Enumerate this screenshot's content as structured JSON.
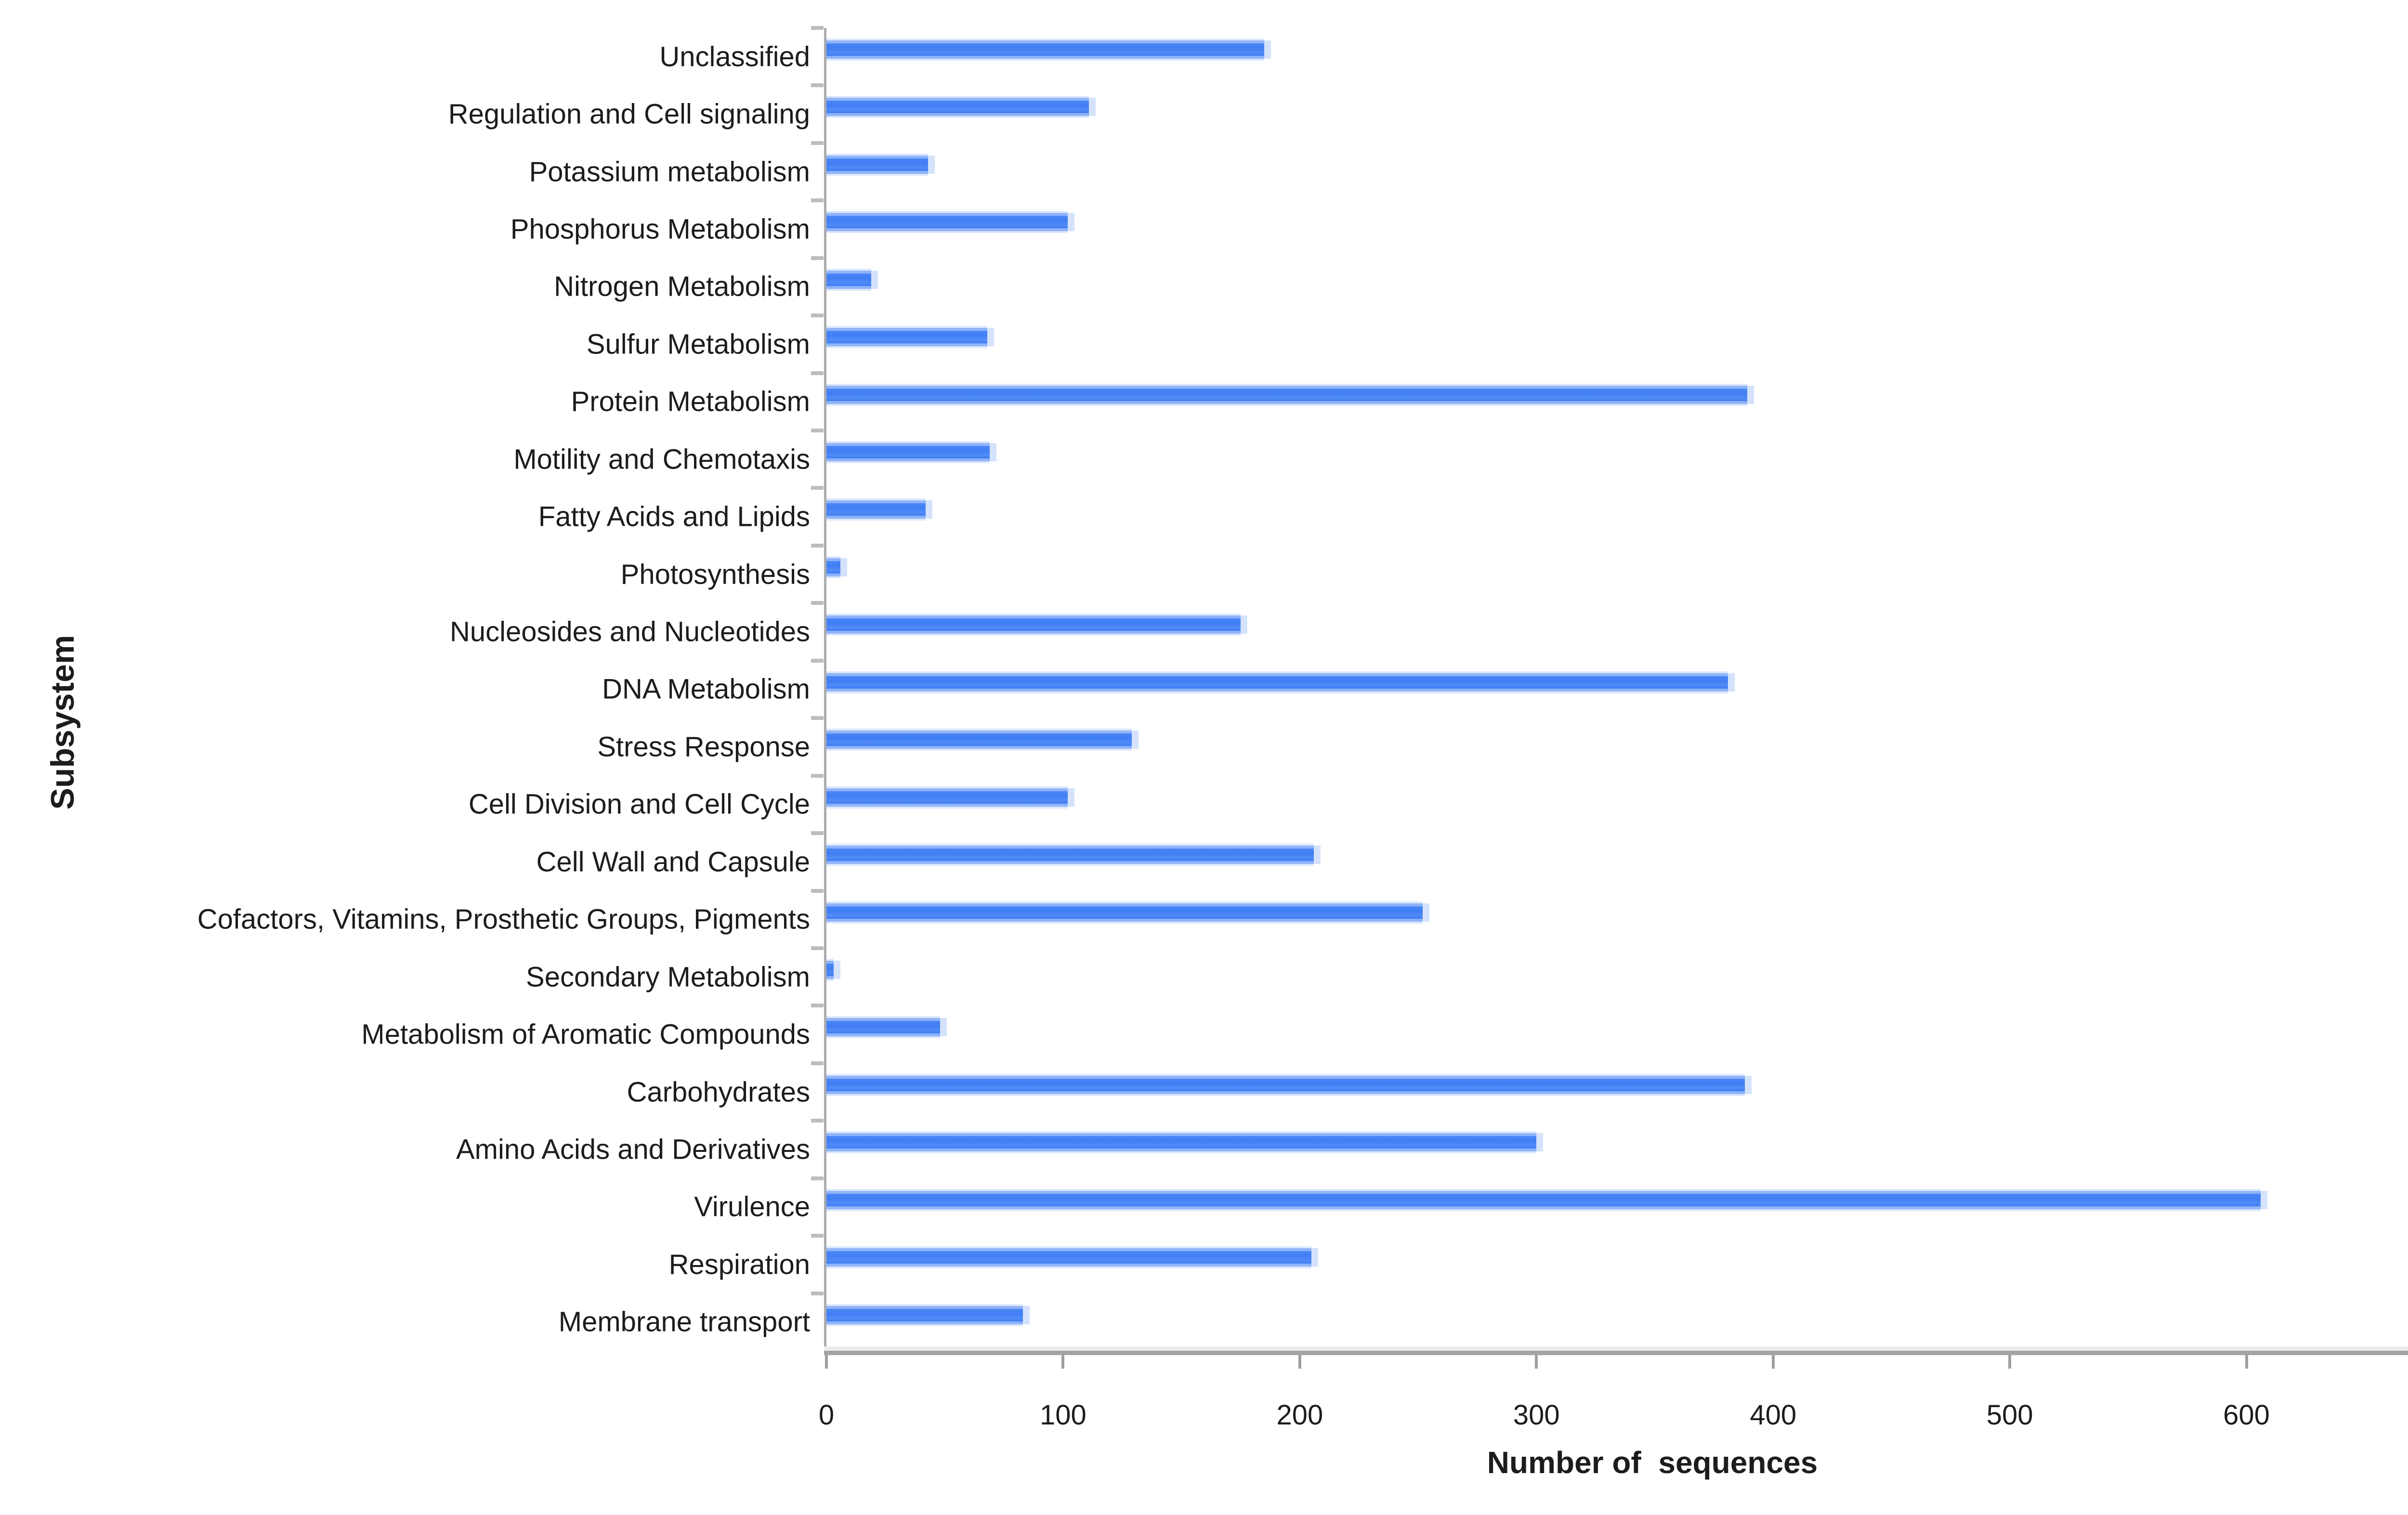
{
  "chart_data": {
    "type": "bar",
    "orientation": "horizontal",
    "title": "",
    "xlabel": "Number of  sequences",
    "ylabel": "Subsystem",
    "xlim": [
      0,
      700
    ],
    "xticks": [
      0,
      100,
      200,
      300,
      400,
      500,
      600,
      700
    ],
    "grid": false,
    "legend": "none",
    "bar_color": "#3f7ef4",
    "bar_cap_color": "#cdddfc",
    "axis_color": "#a3a3a3",
    "axis_light": "#ababab",
    "axis_halo": "#ebebeb",
    "xtick_color": "#9e9e9e",
    "ytick_color": "#bdbdbd",
    "text_color": "#1c1c1c",
    "categories": [
      "Unclassified",
      "Regulation and Cell signaling",
      "Potassium metabolism",
      "Phosphorus Metabolism",
      "Nitrogen Metabolism",
      "Sulfur Metabolism",
      "Protein Metabolism",
      "Motility and Chemotaxis",
      "Fatty Acids and Lipids",
      "Photosynthesis",
      "Nucleosides and Nucleotides",
      "DNA Metabolism",
      "Stress Response",
      "Cell Division and Cell Cycle",
      "Cell Wall and Capsule",
      "Cofactors, Vitamins, Prosthetic Groups, Pigments",
      "Secondary Metabolism",
      "Metabolism of Aromatic Compounds",
      "Carbohydrates",
      "Amino Acids and Derivatives",
      "Virulence",
      "Respiration",
      "Membrane transport"
    ],
    "values": [
      185,
      111,
      43,
      102,
      19,
      68,
      389,
      69,
      42,
      6,
      175,
      381,
      129,
      102,
      206,
      252,
      3,
      48,
      388,
      300,
      606,
      205,
      83
    ]
  }
}
